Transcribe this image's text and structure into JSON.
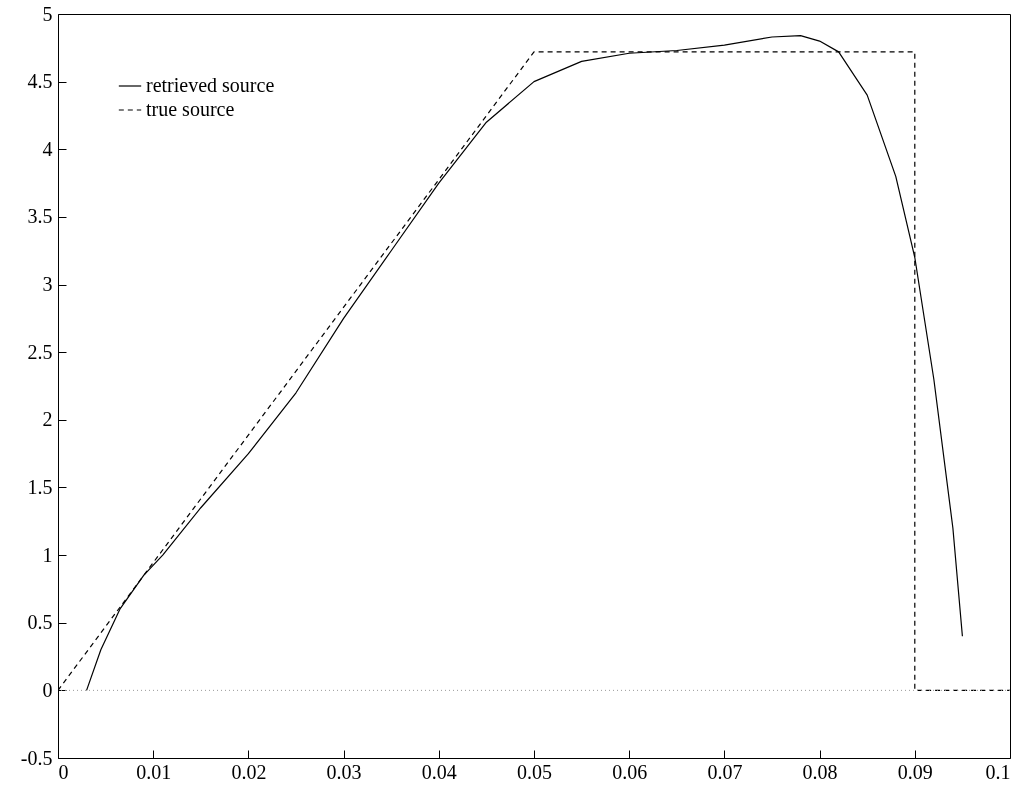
{
  "chart_data": {
    "type": "line",
    "xlim": [
      0,
      0.1
    ],
    "ylim": [
      -0.5,
      5
    ],
    "xticks": [
      0,
      0.01,
      0.02,
      0.03,
      0.04,
      0.05,
      0.06,
      0.07,
      0.08,
      0.09,
      0.1
    ],
    "yticks": [
      -0.5,
      0,
      0.5,
      1,
      1.5,
      2,
      2.5,
      3,
      3.5,
      4,
      4.5,
      5
    ],
    "grid": false,
    "legend": "top left",
    "ref_lines": [
      {
        "axis": "y",
        "value": 0,
        "color": "#999999",
        "line_style": "dotted"
      }
    ],
    "series": [
      {
        "name": "retrieved source",
        "color": "#000000",
        "line_style": "solid",
        "x": [
          0.003,
          0.0045,
          0.0065,
          0.009,
          0.011,
          0.015,
          0.02,
          0.025,
          0.03,
          0.035,
          0.04,
          0.045,
          0.05,
          0.055,
          0.06,
          0.065,
          0.07,
          0.075,
          0.078,
          0.08,
          0.082,
          0.085,
          0.088,
          0.09,
          0.092,
          0.094,
          0.095
        ],
        "values": [
          0,
          0.3,
          0.6,
          0.85,
          1,
          1.35,
          1.75,
          2.2,
          2.75,
          3.25,
          3.75,
          4.2,
          4.5,
          4.65,
          4.71,
          4.73,
          4.77,
          4.83,
          4.84,
          4.8,
          4.72,
          4.4,
          3.8,
          3.2,
          2.3,
          1.2,
          0.4
        ]
      },
      {
        "name": "true source",
        "color": "#000000",
        "line_style": "dashed",
        "x": [
          0,
          0.05,
          0.09,
          0.09,
          0.1
        ],
        "values": [
          0,
          4.72,
          4.72,
          0,
          0
        ]
      }
    ]
  }
}
